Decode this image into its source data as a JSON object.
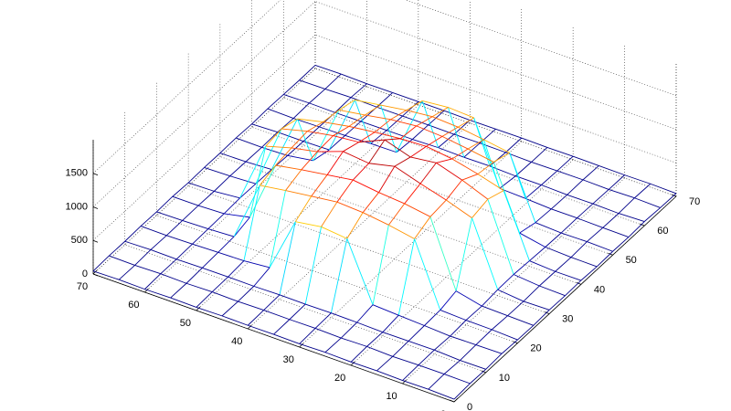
{
  "chart_data": {
    "type": "mesh",
    "x": [
      0,
      5,
      10,
      15,
      20,
      25,
      30,
      35,
      40,
      45,
      50,
      55,
      60,
      65,
      70
    ],
    "y": [
      0,
      5,
      10,
      15,
      20,
      25,
      30,
      35,
      40,
      45,
      50,
      55,
      60,
      65,
      70
    ],
    "z": [
      [
        40,
        55,
        48,
        62,
        50,
        45,
        58,
        52,
        60,
        47,
        55,
        50,
        63,
        49,
        44
      ],
      [
        52,
        60,
        45,
        58,
        66,
        54,
        49,
        61,
        57,
        50,
        64,
        53,
        48,
        59,
        51
      ],
      [
        47,
        58,
        63,
        51,
        70,
        62,
        88,
        95,
        80,
        66,
        58,
        61,
        55,
        50,
        46
      ],
      [
        55,
        49,
        60,
        72,
        85,
        150,
        1020,
        1080,
        990,
        140,
        76,
        60,
        52,
        57,
        49
      ],
      [
        50,
        62,
        57,
        90,
        1010,
        1120,
        1150,
        1230,
        1100,
        1060,
        980,
        80,
        63,
        55,
        52
      ],
      [
        58,
        53,
        66,
        110,
        1080,
        1180,
        1260,
        1350,
        1190,
        1120,
        1040,
        95,
        60,
        50,
        48
      ],
      [
        49,
        61,
        70,
        960,
        1130,
        1210,
        1380,
        1300,
        1240,
        1170,
        1090,
        1010,
        72,
        57,
        53
      ],
      [
        54,
        57,
        65,
        1000,
        1150,
        1260,
        1290,
        1420,
        1220,
        1190,
        1110,
        1030,
        68,
        60,
        50
      ],
      [
        51,
        60,
        68,
        940,
        1100,
        1200,
        1330,
        1250,
        1180,
        1150,
        1070,
        990,
        75,
        55,
        47
      ],
      [
        56,
        52,
        61,
        120,
        1050,
        1140,
        1190,
        1210,
        1130,
        1080,
        1010,
        88,
        63,
        58,
        52
      ],
      [
        48,
        59,
        64,
        85,
        990,
        1070,
        1110,
        1140,
        1060,
        1020,
        950,
        82,
        61,
        54,
        50
      ],
      [
        53,
        50,
        62,
        74,
        90,
        160,
        1000,
        1040,
        970,
        130,
        71,
        66,
        57,
        52,
        49
      ],
      [
        46,
        58,
        55,
        63,
        70,
        78,
        92,
        86,
        80,
        68,
        62,
        59,
        53,
        60,
        45
      ],
      [
        52,
        47,
        60,
        54,
        58,
        62,
        57,
        65,
        60,
        55,
        63,
        50,
        58,
        49,
        54
      ],
      [
        44,
        53,
        49,
        57,
        51,
        60,
        48,
        55,
        52,
        58,
        47,
        56,
        50,
        45,
        48
      ]
    ],
    "xlim": [
      0,
      70
    ],
    "xticks": [
      0,
      10,
      20,
      30,
      40,
      50,
      60,
      70
    ],
    "ylim": [
      0,
      70
    ],
    "yticks": [
      0,
      10,
      20,
      30,
      40,
      50,
      60,
      70
    ],
    "zlim": [
      0,
      2000
    ],
    "zticks": [
      0,
      500,
      1000,
      1500
    ],
    "colormap": "jet",
    "grid": true
  }
}
